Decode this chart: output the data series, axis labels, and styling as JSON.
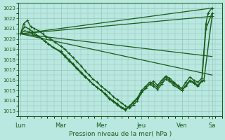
{
  "xlabel": "Pression niveau de la mer( hPa )",
  "bg_color": "#b8e8e0",
  "plot_bg_color": "#b8e8e0",
  "line_color": "#1a5c1a",
  "grid_color": "#90b8b0",
  "ylim": [
    1012.5,
    1023.5
  ],
  "yticks": [
    1013,
    1014,
    1015,
    1016,
    1017,
    1018,
    1019,
    1020,
    1021,
    1022,
    1023
  ],
  "day_labels": [
    "Lun",
    "Mar",
    "Mer",
    "Jeu",
    "Ven",
    "Sa"
  ],
  "day_positions": [
    0,
    1,
    2,
    3,
    4,
    4.75
  ],
  "xlim": [
    -0.05,
    5.0
  ],
  "series": [
    {
      "x": [
        0,
        4.75
      ],
      "y": [
        1020.5,
        1018.3
      ],
      "marker": false,
      "lw": 0.9
    },
    {
      "x": [
        0,
        4.75
      ],
      "y": [
        1020.5,
        1023.0
      ],
      "marker": false,
      "lw": 0.9
    },
    {
      "x": [
        0,
        4.75
      ],
      "y": [
        1020.5,
        1022.2
      ],
      "marker": false,
      "lw": 0.9
    },
    {
      "x": [
        0,
        4.75
      ],
      "y": [
        1020.5,
        1016.5
      ],
      "marker": false,
      "lw": 0.9
    },
    {
      "x": [
        0.0,
        0.08,
        0.17,
        0.25,
        0.35,
        0.45,
        0.55,
        0.65,
        0.75,
        0.85,
        1.0,
        1.1,
        1.2,
        1.3,
        1.4,
        1.5,
        1.6,
        1.7,
        1.8,
        1.9,
        2.0,
        2.1,
        2.2,
        2.3,
        2.4,
        2.5,
        2.6,
        2.7,
        2.8,
        2.9,
        3.0,
        3.1,
        3.2,
        3.3,
        3.4,
        3.5,
        3.6,
        3.7,
        3.8,
        3.9,
        4.0,
        4.1,
        4.2,
        4.3,
        4.4,
        4.5,
        4.6,
        4.65,
        4.75
      ],
      "y": [
        1020.5,
        1021.5,
        1021.8,
        1021.2,
        1021.0,
        1020.8,
        1020.5,
        1020.2,
        1020.0,
        1019.7,
        1019.3,
        1019.0,
        1018.6,
        1018.2,
        1017.8,
        1017.4,
        1016.9,
        1016.5,
        1016.1,
        1015.8,
        1015.4,
        1015.1,
        1014.8,
        1014.4,
        1014.1,
        1013.8,
        1013.5,
        1013.3,
        1013.6,
        1014.0,
        1014.8,
        1015.2,
        1015.6,
        1015.9,
        1015.5,
        1016.0,
        1016.4,
        1016.2,
        1015.8,
        1015.5,
        1015.2,
        1015.8,
        1016.3,
        1016.0,
        1015.8,
        1016.2,
        1021.5,
        1022.5,
        1023.0
      ],
      "marker": true,
      "lw": 1.0
    },
    {
      "x": [
        0.0,
        0.1,
        0.2,
        0.3,
        0.4,
        0.5,
        0.6,
        0.7,
        0.8,
        1.0,
        1.1,
        1.2,
        1.3,
        1.4,
        1.5,
        1.6,
        1.7,
        1.8,
        1.9,
        2.0,
        2.1,
        2.2,
        2.3,
        2.4,
        2.5,
        2.6,
        2.7,
        2.8,
        2.9,
        3.0,
        3.1,
        3.2,
        3.3,
        3.4,
        3.5,
        3.6,
        3.7,
        3.8,
        3.9,
        4.0,
        4.1,
        4.2,
        4.3,
        4.4,
        4.5,
        4.6,
        4.75
      ],
      "y": [
        1020.5,
        1021.2,
        1021.0,
        1020.7,
        1020.4,
        1020.1,
        1019.8,
        1019.5,
        1019.2,
        1018.8,
        1018.4,
        1018.0,
        1017.6,
        1017.2,
        1016.8,
        1016.4,
        1016.0,
        1015.6,
        1015.3,
        1015.0,
        1014.7,
        1014.3,
        1014.0,
        1013.7,
        1013.4,
        1013.2,
        1013.5,
        1013.9,
        1014.3,
        1015.0,
        1015.4,
        1015.8,
        1015.6,
        1015.3,
        1015.8,
        1016.3,
        1016.0,
        1015.7,
        1015.4,
        1015.0,
        1015.5,
        1016.0,
        1015.8,
        1015.5,
        1016.0,
        1021.0,
        1022.5
      ],
      "marker": true,
      "lw": 1.0
    },
    {
      "x": [
        0.0,
        0.1,
        0.2,
        0.3,
        0.4,
        0.5,
        0.6,
        0.7,
        0.8,
        1.0,
        1.1,
        1.2,
        1.3,
        1.4,
        1.5,
        1.6,
        1.7,
        1.8,
        1.9,
        2.0,
        2.1,
        2.2,
        2.3,
        2.4,
        2.5,
        2.6,
        2.7,
        2.8,
        2.9,
        3.0,
        3.1,
        3.2,
        3.3,
        3.4,
        3.5,
        3.6,
        3.7,
        3.8,
        4.0,
        4.1,
        4.2,
        4.3,
        4.4,
        4.5,
        4.55,
        4.75
      ],
      "y": [
        1020.5,
        1020.8,
        1020.7,
        1020.5,
        1020.3,
        1020.1,
        1019.8,
        1019.5,
        1019.2,
        1018.7,
        1018.3,
        1017.9,
        1017.5,
        1017.1,
        1016.7,
        1016.3,
        1016.0,
        1015.6,
        1015.3,
        1015.0,
        1014.6,
        1014.2,
        1013.9,
        1013.6,
        1013.3,
        1013.1,
        1013.4,
        1013.8,
        1014.2,
        1014.8,
        1015.2,
        1015.6,
        1015.4,
        1015.1,
        1015.6,
        1016.1,
        1015.9,
        1015.5,
        1015.0,
        1015.4,
        1015.9,
        1015.7,
        1015.4,
        1015.9,
        1016.0,
        1022.2
      ],
      "marker": true,
      "lw": 1.0
    }
  ]
}
